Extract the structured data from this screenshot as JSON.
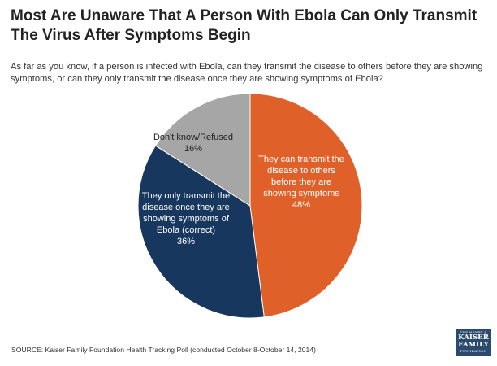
{
  "header": {
    "title": "Most Are Unaware That A Person With Ebola Can Only Transmit The Virus After Symptoms Begin",
    "question": "As far as you know, if a person is infected with Ebola, can they transmit the disease to others before they are showing symptoms, or can they only transmit the disease once they are showing symptoms of Ebola?"
  },
  "chart_data": {
    "type": "pie",
    "title": "Most Are Unaware That A Person With Ebola Can Only Transmit The Virus After Symptoms Begin",
    "slices": [
      {
        "label_lines": [
          "They can transmit the",
          "disease to others",
          "before they are",
          "showing symptoms"
        ],
        "value": 48,
        "value_label": "48%",
        "color": "#e0602a",
        "text_color": "#ffffff"
      },
      {
        "label_lines": [
          "They only transmit the",
          "disease once they are",
          "showing symptoms of",
          "Ebola (correct)"
        ],
        "value": 36,
        "value_label": "36%",
        "color": "#17375e",
        "text_color": "#ffffff"
      },
      {
        "label_lines": [
          "Don't know/Refused"
        ],
        "value": 16,
        "value_label": "16%",
        "color": "#a6a6a6",
        "text_color": "#222222"
      }
    ]
  },
  "footer": {
    "source": "SOURCE: Kaiser Family Foundation Health Tracking Poll (conducted October 8-October 14, 2014)",
    "logo_top": "THE HENRY J.",
    "logo_name_1": "KAISER",
    "logo_name_2": "FAMILY",
    "logo_bottom": "FOUNDATION"
  }
}
